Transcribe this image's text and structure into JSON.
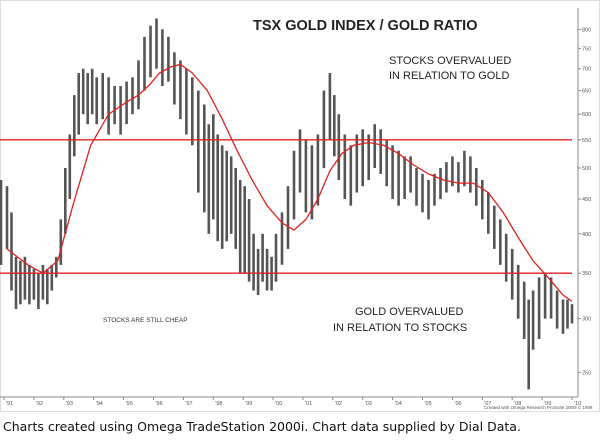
{
  "caption": "Charts created using Omega TradeStation 2000i. Chart data supplied by Dial Data.",
  "chart_data": {
    "type": "bar",
    "title": "TSX GOLD INDEX / GOLD RATIO",
    "annotations": [
      {
        "id": "upper",
        "lines": [
          "STOCKS OVERVALUED",
          "IN RELATION TO GOLD"
        ]
      },
      {
        "id": "lower",
        "lines": [
          "GOLD OVERVALUED",
          "IN RELATION TO STOCKS"
        ]
      },
      {
        "id": "cheap",
        "lines": [
          "STOCKS ARE STILL CHEAP"
        ]
      }
    ],
    "credit": "Created with Omega Research ProSuite 2000i © 1999",
    "y_scale": "log",
    "ylim": [
      230,
      860
    ],
    "y_ticks": [
      250,
      300,
      350,
      400,
      450,
      500,
      550,
      600,
      650,
      700,
      750,
      800
    ],
    "x_ticks": [
      "'91",
      "'92",
      "'93",
      "'94",
      "'95",
      "'96",
      "'97",
      "'98",
      "'99",
      "'00",
      "'01",
      "'02",
      "'03",
      "'04",
      "'05",
      "'06",
      "'07",
      "'08",
      "'09",
      "'10"
    ],
    "xlim": [
      1991.0,
      2010.0
    ],
    "reference_lines": [
      550,
      350
    ],
    "colors": {
      "bars": "#555555",
      "moving_average": "#dd2222",
      "reference_lines": "#e02020",
      "axis": "#888888"
    },
    "series": [
      {
        "values": [
          [
            1990.9,
            360,
            480
          ],
          [
            1991.1,
            380,
            470
          ],
          [
            1991.25,
            330,
            430
          ],
          [
            1991.4,
            310,
            370
          ],
          [
            1991.55,
            315,
            365
          ],
          [
            1991.7,
            320,
            370
          ],
          [
            1991.85,
            315,
            360
          ],
          [
            1992.0,
            320,
            355
          ],
          [
            1992.15,
            310,
            350
          ],
          [
            1992.3,
            320,
            360
          ],
          [
            1992.45,
            315,
            355
          ],
          [
            1992.6,
            330,
            360
          ],
          [
            1992.75,
            345,
            370
          ],
          [
            1992.9,
            360,
            420
          ],
          [
            1993.05,
            400,
            500
          ],
          [
            1993.2,
            450,
            560
          ],
          [
            1993.35,
            520,
            640
          ],
          [
            1993.5,
            560,
            690
          ],
          [
            1993.65,
            600,
            700
          ],
          [
            1993.8,
            580,
            690
          ],
          [
            1993.95,
            600,
            700
          ],
          [
            1994.1,
            580,
            680
          ],
          [
            1994.3,
            590,
            690
          ],
          [
            1994.5,
            560,
            680
          ],
          [
            1994.7,
            580,
            660
          ],
          [
            1994.9,
            560,
            660
          ],
          [
            1995.1,
            580,
            670
          ],
          [
            1995.3,
            600,
            680
          ],
          [
            1995.5,
            610,
            720
          ],
          [
            1995.7,
            650,
            780
          ],
          [
            1995.9,
            680,
            810
          ],
          [
            1996.1,
            700,
            830
          ],
          [
            1996.3,
            660,
            800
          ],
          [
            1996.5,
            670,
            780
          ],
          [
            1996.7,
            620,
            740
          ],
          [
            1996.9,
            590,
            720
          ],
          [
            1997.1,
            560,
            700
          ],
          [
            1997.3,
            540,
            680
          ],
          [
            1997.5,
            460,
            650
          ],
          [
            1997.7,
            430,
            620
          ],
          [
            1997.85,
            400,
            580
          ],
          [
            1998.0,
            420,
            600
          ],
          [
            1998.15,
            390,
            560
          ],
          [
            1998.3,
            380,
            540
          ],
          [
            1998.45,
            390,
            530
          ],
          [
            1998.6,
            400,
            520
          ],
          [
            1998.75,
            380,
            500
          ],
          [
            1998.9,
            350,
            480
          ],
          [
            1999.05,
            350,
            470
          ],
          [
            1999.2,
            340,
            450
          ],
          [
            1999.35,
            330,
            400
          ],
          [
            1999.5,
            325,
            380
          ],
          [
            1999.65,
            340,
            400
          ],
          [
            1999.8,
            330,
            380
          ],
          [
            1999.95,
            330,
            370
          ],
          [
            2000.1,
            340,
            400
          ],
          [
            2000.3,
            360,
            430
          ],
          [
            2000.5,
            380,
            470
          ],
          [
            2000.7,
            420,
            530
          ],
          [
            2000.9,
            460,
            570
          ],
          [
            2001.1,
            430,
            550
          ],
          [
            2001.3,
            420,
            540
          ],
          [
            2001.5,
            440,
            560
          ],
          [
            2001.7,
            500,
            650
          ],
          [
            2001.9,
            550,
            690
          ],
          [
            2002.05,
            520,
            640
          ],
          [
            2002.2,
            480,
            600
          ],
          [
            2002.4,
            450,
            560
          ],
          [
            2002.6,
            440,
            540
          ],
          [
            2002.8,
            460,
            560
          ],
          [
            2003.0,
            470,
            570
          ],
          [
            2003.2,
            480,
            560
          ],
          [
            2003.4,
            500,
            580
          ],
          [
            2003.6,
            490,
            570
          ],
          [
            2003.8,
            470,
            550
          ],
          [
            2004.0,
            450,
            540
          ],
          [
            2004.2,
            440,
            530
          ],
          [
            2004.4,
            450,
            520
          ],
          [
            2004.6,
            460,
            520
          ],
          [
            2004.8,
            440,
            500
          ],
          [
            2005.0,
            430,
            490
          ],
          [
            2005.2,
            420,
            480
          ],
          [
            2005.4,
            440,
            490
          ],
          [
            2005.6,
            450,
            500
          ],
          [
            2005.8,
            460,
            510
          ],
          [
            2006.0,
            470,
            520
          ],
          [
            2006.2,
            460,
            510
          ],
          [
            2006.4,
            470,
            530
          ],
          [
            2006.6,
            460,
            520
          ],
          [
            2006.8,
            440,
            500
          ],
          [
            2007.0,
            420,
            480
          ],
          [
            2007.2,
            400,
            460
          ],
          [
            2007.4,
            380,
            440
          ],
          [
            2007.6,
            360,
            420
          ],
          [
            2007.8,
            340,
            400
          ],
          [
            2008.0,
            320,
            380
          ],
          [
            2008.2,
            300,
            360
          ],
          [
            2008.4,
            280,
            340
          ],
          [
            2008.55,
            236,
            320
          ],
          [
            2008.7,
            270,
            330
          ],
          [
            2008.9,
            280,
            345
          ],
          [
            2009.1,
            300,
            350
          ],
          [
            2009.3,
            300,
            345
          ],
          [
            2009.5,
            290,
            330
          ],
          [
            2009.7,
            285,
            320
          ],
          [
            2009.85,
            290,
            320
          ],
          [
            2010.0,
            295,
            315
          ]
        ]
      },
      {
        "values": [
          [
            1991.1,
            380
          ],
          [
            1991.8,
            360
          ],
          [
            1992.3,
            350
          ],
          [
            1992.8,
            365
          ],
          [
            1993.3,
            440
          ],
          [
            1993.9,
            540
          ],
          [
            1994.5,
            600
          ],
          [
            1995.1,
            625
          ],
          [
            1995.5,
            640
          ],
          [
            1995.9,
            665
          ],
          [
            1996.2,
            690
          ],
          [
            1996.6,
            705
          ],
          [
            1996.9,
            710
          ],
          [
            1997.3,
            690
          ],
          [
            1997.8,
            650
          ],
          [
            1998.3,
            590
          ],
          [
            1998.8,
            530
          ],
          [
            1999.3,
            480
          ],
          [
            1999.8,
            440
          ],
          [
            2000.3,
            415
          ],
          [
            2000.7,
            405
          ],
          [
            2001.1,
            420
          ],
          [
            2001.5,
            450
          ],
          [
            2001.9,
            495
          ],
          [
            2002.3,
            525
          ],
          [
            2002.7,
            540
          ],
          [
            2003.2,
            545
          ],
          [
            2003.7,
            540
          ],
          [
            2004.2,
            525
          ],
          [
            2004.7,
            505
          ],
          [
            2005.2,
            490
          ],
          [
            2005.7,
            480
          ],
          [
            2006.2,
            475
          ],
          [
            2006.7,
            475
          ],
          [
            2007.2,
            460
          ],
          [
            2007.7,
            430
          ],
          [
            2008.2,
            395
          ],
          [
            2008.7,
            365
          ],
          [
            2009.2,
            345
          ],
          [
            2009.7,
            325
          ],
          [
            2010.0,
            318
          ]
        ]
      }
    ]
  }
}
